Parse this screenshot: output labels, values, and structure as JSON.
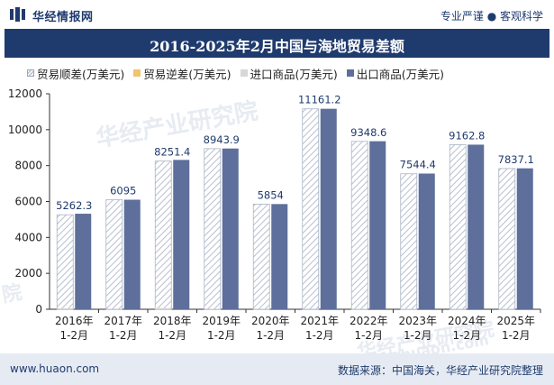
{
  "header": {
    "brand": "华经情报网",
    "slogan": "专业严谨 ● 客观科学"
  },
  "watermarks": {
    "main": "华经产业研究院",
    "side": "院",
    "corner": "华经产业研究院",
    "url": "www.huaon.com"
  },
  "chart_data": {
    "type": "bar",
    "title": "2016-2025年2月中国与海地贸易差额",
    "categories": [
      "2016年\n1-2月",
      "2017年\n1-2月",
      "2018年\n1-2月",
      "2019年\n1-2月",
      "2020年\n1-2月",
      "2021年\n1-2月",
      "2022年\n1-2月",
      "2023年\n1-2月",
      "2024年\n1-2月",
      "2025年\n1-2月"
    ],
    "category_lines": [
      [
        "2016年",
        "1-2月"
      ],
      [
        "2017年",
        "1-2月"
      ],
      [
        "2018年",
        "1-2月"
      ],
      [
        "2019年",
        "1-2月"
      ],
      [
        "2020年",
        "1-2月"
      ],
      [
        "2021年",
        "1-2月"
      ],
      [
        "2022年",
        "1-2月"
      ],
      [
        "2023年",
        "1-2月"
      ],
      [
        "2024年",
        "1-2月"
      ],
      [
        "2025年",
        "1-2月"
      ]
    ],
    "series": [
      {
        "name": "贸易顺差(万美元)",
        "color": "#b7bfcf",
        "style": "hatch",
        "values": [
          5262.3,
          6095,
          8251.4,
          8943.9,
          5854,
          11161.2,
          9348.6,
          7544.4,
          9162.8,
          7837.1
        ]
      },
      {
        "name": "贸易逆差(万美元)",
        "color": "#f2c46b",
        "style": "solid",
        "values": [
          0,
          0,
          0,
          0,
          0,
          0,
          0,
          0,
          0,
          0
        ]
      },
      {
        "name": "进口商品(万美元)",
        "color": "#d7d7d7",
        "style": "solid",
        "values": [
          58,
          5,
          65,
          8,
          4,
          3,
          10,
          13,
          3,
          12
        ]
      },
      {
        "name": "出口商品(万美元)",
        "color": "#5d6f9a",
        "style": "solid",
        "values": [
          5320,
          6100,
          8316,
          8952,
          5858,
          11164,
          9358,
          7557,
          9166,
          7849
        ]
      }
    ],
    "data_labels": [
      "5262.3",
      "6095",
      "8251.4",
      "8943.9",
      "5854",
      "11161.2",
      "9348.6",
      "7544.4",
      "9162.8",
      "7837.1"
    ],
    "yticks": [
      0,
      2000,
      4000,
      6000,
      8000,
      10000,
      12000
    ],
    "ylim": [
      0,
      12000
    ],
    "xlabel": "",
    "ylabel": "",
    "legend_position": "top"
  },
  "footer": {
    "website": "www.huaon.com",
    "source": "数据来源：中国海关，华经产业研究院整理"
  }
}
